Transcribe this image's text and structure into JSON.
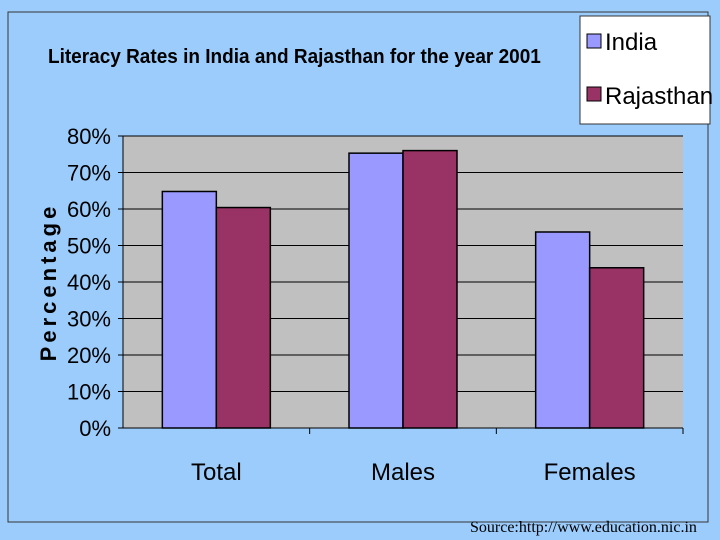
{
  "chart_data": {
    "type": "bar",
    "title": "Literacy Rates in India and Rajasthan for the year 2001",
    "xlabel": "",
    "ylabel": "Percentage",
    "categories": [
      "Total",
      "Males",
      "Females"
    ],
    "series": [
      {
        "name": "India",
        "color": "#9999ff",
        "values": [
          64.8,
          75.3,
          53.7
        ]
      },
      {
        "name": "Rajasthan",
        "color": "#993366",
        "values": [
          60.4,
          76.0,
          43.9
        ]
      }
    ],
    "ylim": [
      0,
      80
    ],
    "yticks": [
      "0%",
      "10%",
      "20%",
      "30%",
      "40%",
      "50%",
      "60%",
      "70%",
      "80%"
    ],
    "grid": true,
    "legend": "top-right",
    "plot_bg": "#c0c0c0"
  },
  "source": "Source:http://www.education.nic.in"
}
